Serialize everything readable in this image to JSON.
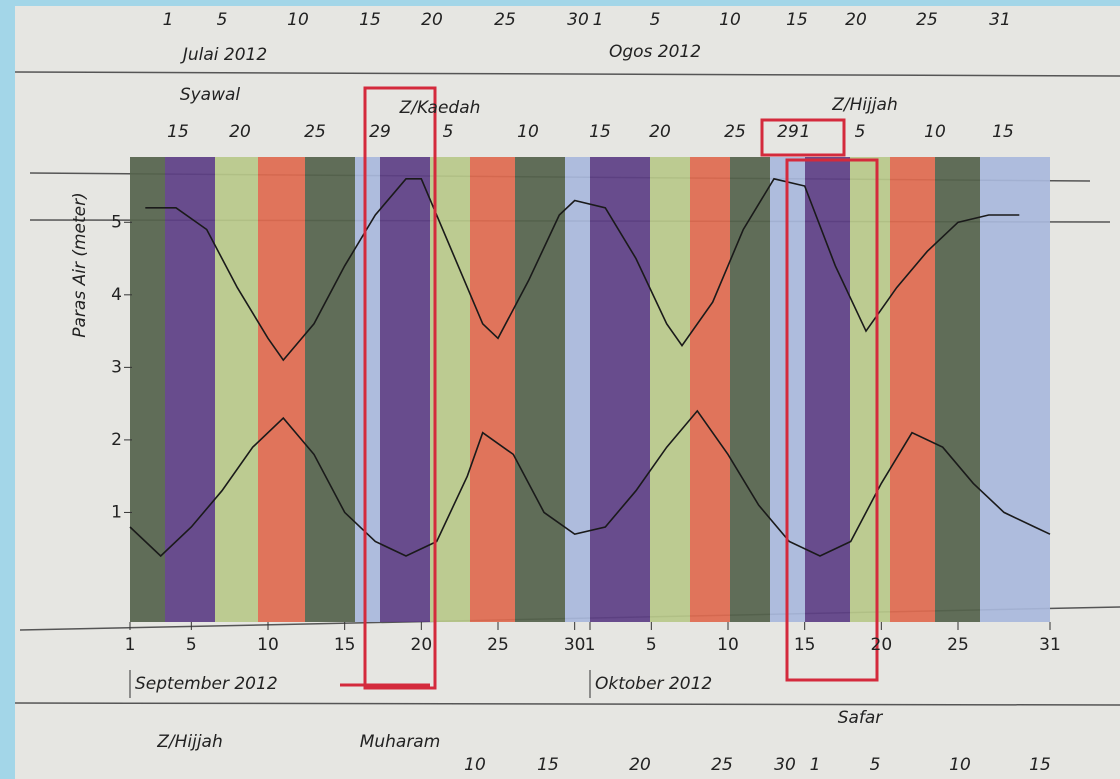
{
  "chart_data": {
    "type": "line",
    "y_label": "Paras Air (meter)",
    "ylim": [
      -0.4,
      5.9
    ],
    "yticks": [
      1,
      2,
      3,
      4,
      5
    ],
    "xlim": [
      "2012-09-01",
      "2012-10-31"
    ],
    "xticks": [
      {
        "value": "2012-09-01",
        "label": "1"
      },
      {
        "value": "2012-09-05",
        "label": "5"
      },
      {
        "value": "2012-09-10",
        "label": "10"
      },
      {
        "value": "2012-09-15",
        "label": "15"
      },
      {
        "value": "2012-09-20",
        "label": "20"
      },
      {
        "value": "2012-09-25",
        "label": "25"
      },
      {
        "value": "2012-09-30",
        "label": "30"
      },
      {
        "value": "2012-10-01",
        "label": "1"
      },
      {
        "value": "2012-10-05",
        "label": "5"
      },
      {
        "value": "2012-10-10",
        "label": "10"
      },
      {
        "value": "2012-10-15",
        "label": "15"
      },
      {
        "value": "2012-10-20",
        "label": "20"
      },
      {
        "value": "2012-10-25",
        "label": "25"
      },
      {
        "value": "2012-10-31",
        "label": "31"
      }
    ],
    "x_months": [
      {
        "value": "2012-09-01",
        "label": "September 2012"
      },
      {
        "value": "2012-10-01",
        "label": "Oktober 2012"
      }
    ],
    "series": [
      {
        "color": "#1a1a1a",
        "x": [
          "2012-09-02",
          "2012-09-04",
          "2012-09-06",
          "2012-09-08",
          "2012-09-10",
          "2012-09-11",
          "2012-09-13",
          "2012-09-15",
          "2012-09-17",
          "2012-09-19",
          "2012-09-20",
          "2012-09-22",
          "2012-09-24",
          "2012-09-25",
          "2012-09-27",
          "2012-09-29",
          "2012-09-30",
          "2012-10-02",
          "2012-10-04",
          "2012-10-06",
          "2012-10-07",
          "2012-10-09",
          "2012-10-11",
          "2012-10-13",
          "2012-10-15",
          "2012-10-17",
          "2012-10-19",
          "2012-10-21",
          "2012-10-23",
          "2012-10-25",
          "2012-10-27",
          "2012-10-29"
        ],
        "values": [
          5.2,
          5.2,
          4.9,
          4.1,
          3.4,
          3.1,
          3.6,
          4.4,
          5.1,
          5.6,
          5.6,
          4.6,
          3.6,
          3.4,
          4.2,
          5.1,
          5.3,
          5.2,
          4.5,
          3.6,
          3.3,
          3.9,
          4.9,
          5.6,
          5.5,
          4.4,
          3.5,
          4.1,
          4.6,
          5.0,
          5.1,
          5.1
        ]
      },
      {
        "color": "#1a1a1a",
        "x": [
          "2012-09-01",
          "2012-09-03",
          "2012-09-05",
          "2012-09-07",
          "2012-09-09",
          "2012-09-11",
          "2012-09-13",
          "2012-09-15",
          "2012-09-17",
          "2012-09-19",
          "2012-09-21",
          "2012-09-23",
          "2012-09-24",
          "2012-09-26",
          "2012-09-28",
          "2012-09-30",
          "2012-10-02",
          "2012-10-04",
          "2012-10-06",
          "2012-10-08",
          "2012-10-10",
          "2012-10-12",
          "2012-10-14",
          "2012-10-16",
          "2012-10-18",
          "2012-10-20",
          "2012-10-22",
          "2012-10-24",
          "2012-10-26",
          "2012-10-28",
          "2012-10-30",
          "2012-10-31"
        ],
        "values": [
          0.8,
          0.4,
          0.8,
          1.3,
          1.9,
          2.3,
          1.8,
          1.0,
          0.6,
          0.4,
          0.6,
          1.5,
          2.1,
          1.8,
          1.0,
          0.7,
          0.8,
          1.3,
          1.9,
          2.4,
          1.8,
          1.1,
          0.6,
          0.4,
          0.6,
          1.4,
          2.1,
          1.9,
          1.4,
          1.0,
          0.8,
          0.7
        ]
      }
    ],
    "top_dates": {
      "days": [
        "1",
        "5",
        "10",
        "15",
        "20",
        "25",
        "30",
        "1",
        "5",
        "10",
        "15",
        "20",
        "25",
        "31"
      ],
      "months": [
        "Julai 2012",
        "Ogos 2012"
      ]
    },
    "hijri_top": {
      "months": [
        "Syawal",
        "Z/Kaedah",
        "Z/Hijjah"
      ],
      "days": [
        "15",
        "20",
        "25",
        "29",
        "5",
        "10",
        "15",
        "20",
        "25",
        "29",
        "1",
        "5",
        "10",
        "15"
      ]
    },
    "hijri_bottom": {
      "months": [
        "Z/Hijjah",
        "Muharam",
        "Safar"
      ],
      "days": [
        "10",
        "15",
        "20",
        "25",
        "30",
        "1",
        "5",
        "10",
        "15"
      ]
    }
  }
}
